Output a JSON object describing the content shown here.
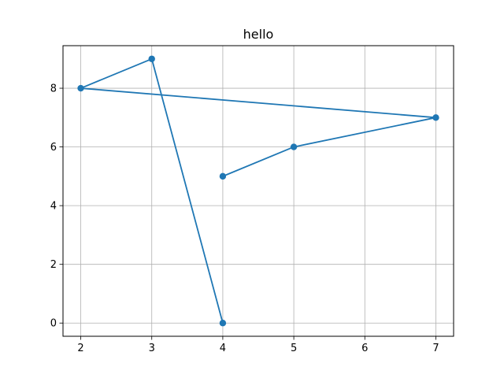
{
  "chart_data": {
    "type": "line",
    "title": "hello",
    "xlabel": "",
    "ylabel": "",
    "xlim": [
      1.75,
      7.25
    ],
    "ylim": [
      -0.45,
      9.45
    ],
    "x_ticks": [
      2,
      3,
      4,
      5,
      6,
      7
    ],
    "y_ticks": [
      0,
      2,
      4,
      6,
      8
    ],
    "grid": true,
    "markers": true,
    "series": [
      {
        "x": [
          4,
          5,
          7,
          2,
          3,
          4
        ],
        "y": [
          5,
          6,
          7,
          8,
          9,
          0
        ],
        "color": "#1f77b4"
      }
    ]
  }
}
